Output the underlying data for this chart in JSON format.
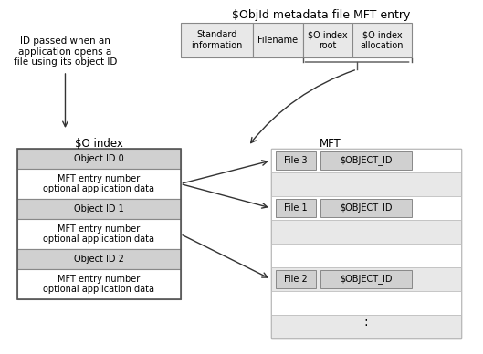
{
  "title": "$ObjId metadata file MFT entry",
  "bg_color": "#ffffff",
  "light_gray": "#d0d0d0",
  "white": "#ffffff",
  "lighter_gray": "#e8e8e8",
  "text_color": "#000000",
  "annotation_text": "ID passed when an\napplication opens a\nfile using its object ID",
  "so_index_label": "$O index",
  "mft_label": "MFT",
  "header_cells": [
    "Standard\ninformation",
    "Filename",
    "$O index\nroot",
    "$O index\nallocation"
  ],
  "so_index_rows": [
    {
      "label": "Object ID 0",
      "is_header": true
    },
    {
      "label": "MFT entry number\noptional application data",
      "is_header": false
    },
    {
      "label": "Object ID 1",
      "is_header": true
    },
    {
      "label": "MFT entry number\noptional application data",
      "is_header": false
    },
    {
      "label": "Object ID 2",
      "is_header": true
    },
    {
      "label": "MFT entry number\noptional application data",
      "is_header": false
    }
  ],
  "mft_rows": [
    {
      "file": "File 3",
      "attr": "$OBJECT_ID",
      "has_attr": true,
      "row_idx": 0
    },
    {
      "file": "",
      "attr": "",
      "has_attr": false,
      "row_idx": 1
    },
    {
      "file": "File 1",
      "attr": "$OBJECT_ID",
      "has_attr": true,
      "row_idx": 2
    },
    {
      "file": "",
      "attr": "",
      "has_attr": false,
      "row_idx": 3
    },
    {
      "file": "",
      "attr": "",
      "has_attr": false,
      "row_idx": 4
    },
    {
      "file": "File 2",
      "attr": "$OBJECT_ID",
      "has_attr": true,
      "row_idx": 5
    },
    {
      "file": "",
      "attr": "",
      "has_attr": false,
      "row_idx": 6
    },
    {
      "file": "",
      "attr": "",
      "has_attr": false,
      "row_idx": 7
    }
  ]
}
